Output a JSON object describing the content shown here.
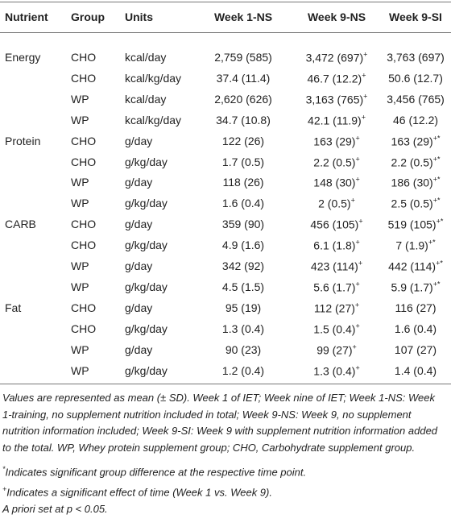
{
  "table": {
    "header": [
      "Nutrient",
      "Group",
      "Units",
      "Week 1-NS",
      "Week 9-NS",
      "Week 9-SI"
    ],
    "nutrients": [
      {
        "name": "Energy",
        "rows": [
          [
            "CHO",
            "kcal/day",
            "2,759 (585)",
            {
              "text": "3,472 (697)",
              "sup": "+"
            },
            "3,763 (697)"
          ],
          [
            "CHO",
            "kcal/kg/day",
            "37.4 (11.4)",
            {
              "text": "46.7 (12.2)",
              "sup": "+"
            },
            "50.6 (12.7)"
          ],
          [
            "WP",
            "kcal/day",
            "2,620 (626)",
            {
              "text": "3,163 (765)",
              "sup": "+"
            },
            "3,456 (765)"
          ],
          [
            "WP",
            "kcal/kg/day",
            "34.7 (10.8)",
            {
              "text": "42.1 (11.9)",
              "sup": "+"
            },
            "46 (12.2)"
          ]
        ]
      },
      {
        "name": "Protein",
        "rows": [
          [
            "CHO",
            "g/day",
            "122 (26)",
            {
              "text": "163 (29)",
              "sup": "+"
            },
            {
              "text": "163 (29)",
              "sup": "+*"
            }
          ],
          [
            "CHO",
            "g/kg/day",
            "1.7 (0.5)",
            {
              "text": "2.2 (0.5)",
              "sup": "+"
            },
            {
              "text": "2.2 (0.5)",
              "sup": "+*"
            }
          ],
          [
            "WP",
            "g/day",
            "118 (26)",
            {
              "text": "148 (30)",
              "sup": "+"
            },
            {
              "text": "186 (30)",
              "sup": "+*"
            }
          ],
          [
            "WP",
            "g/kg/day",
            "1.6 (0.4)",
            {
              "text": "2 (0.5)",
              "sup": "+"
            },
            {
              "text": "2.5 (0.5)",
              "sup": "+*"
            }
          ]
        ]
      },
      {
        "name": "CARB",
        "rows": [
          [
            "CHO",
            "g/day",
            "359 (90)",
            {
              "text": "456 (105)",
              "sup": "+"
            },
            {
              "text": "519 (105)",
              "sup": "+*"
            }
          ],
          [
            "CHO",
            "g/kg/day",
            "4.9 (1.6)",
            {
              "text": "6.1 (1.8)",
              "sup": "+"
            },
            {
              "text": "7 (1.9)",
              "sup": "+*"
            }
          ],
          [
            "WP",
            "g/day",
            "342 (92)",
            {
              "text": "423 (114)",
              "sup": "+"
            },
            {
              "text": "442 (114)",
              "sup": "+*"
            }
          ],
          [
            "WP",
            "g/kg/day",
            "4.5 (1.5)",
            {
              "text": "5.6 (1.7)",
              "sup": "+"
            },
            {
              "text": "5.9 (1.7)",
              "sup": "+*"
            }
          ]
        ]
      },
      {
        "name": "Fat",
        "rows": [
          [
            "CHO",
            "g/day",
            "95 (19)",
            {
              "text": "112 (27)",
              "sup": "+"
            },
            "116 (27)"
          ],
          [
            "CHO",
            "g/kg/day",
            "1.3 (0.4)",
            {
              "text": "1.5 (0.4)",
              "sup": "+"
            },
            "1.6 (0.4)"
          ],
          [
            "WP",
            "g/day",
            "90 (23)",
            {
              "text": "99 (27)",
              "sup": "+"
            },
            "107 (27)"
          ],
          [
            "WP",
            "g/kg/day",
            "1.2 (0.4)",
            {
              "text": "1.3 (0.4)",
              "sup": "+"
            },
            "1.4 (0.4)"
          ]
        ]
      }
    ],
    "notes": [
      {
        "text": "Values are represented as mean (± SD). Week 1 of IET; Week nine of IET; Week 1-NS: Week 1-training, no supplement nutrition included in total; Week 9-NS: Week 9, no supplement nutrition information included; Week 9-SI: Week 9 with supplement nutrition information added to the total. WP, Whey protein supplement group; CHO, Carbohydrate supplement group."
      },
      {
        "sup": "*",
        "text": "Indicates significant group difference at the respective time point."
      },
      {
        "sup": "+",
        "text": "Indicates a significant effect of time (Week 1 vs. Week 9)."
      },
      {
        "text": "A priori set at p < 0.05."
      }
    ]
  }
}
